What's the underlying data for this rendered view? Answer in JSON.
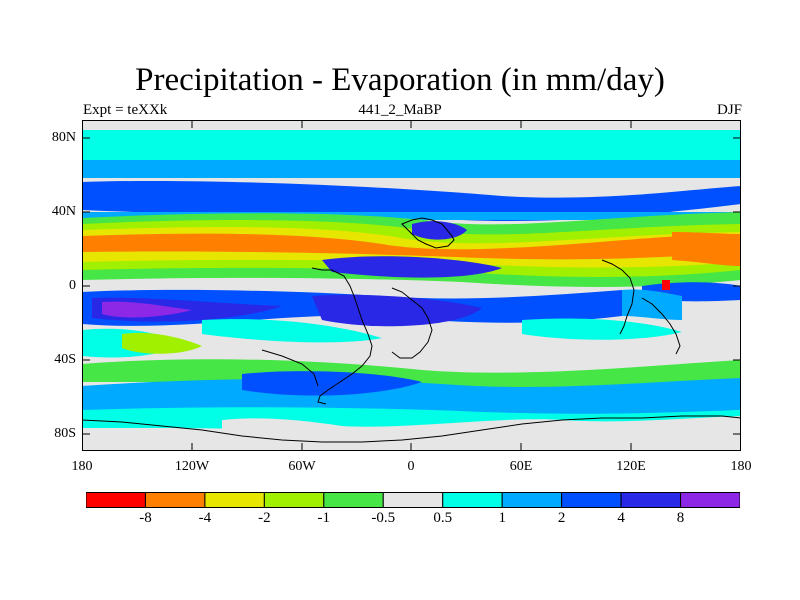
{
  "title": "Precipitation - Evaporation (in mm/day)",
  "subtitle_left": "Expt = teXXk",
  "subtitle_center": "441_2_MaBP",
  "subtitle_right": "DJF",
  "lat_ticks": [
    "80N",
    "40N",
    "0",
    "40S",
    "80S"
  ],
  "lon_ticks": [
    "180",
    "120W",
    "60W",
    "0",
    "60E",
    "120E",
    "180"
  ],
  "colorbar": {
    "colors": [
      "#ff0000",
      "#ff8000",
      "#e6e600",
      "#a0f000",
      "#46e646",
      "#e6e6e6",
      "#00ffe6",
      "#00aaff",
      "#0050ff",
      "#2828e6",
      "#8c28e6"
    ],
    "labels": [
      "-8",
      "-4",
      "-2",
      "-1",
      "-0.5",
      "0.5",
      "1",
      "2",
      "4",
      "8"
    ]
  }
}
